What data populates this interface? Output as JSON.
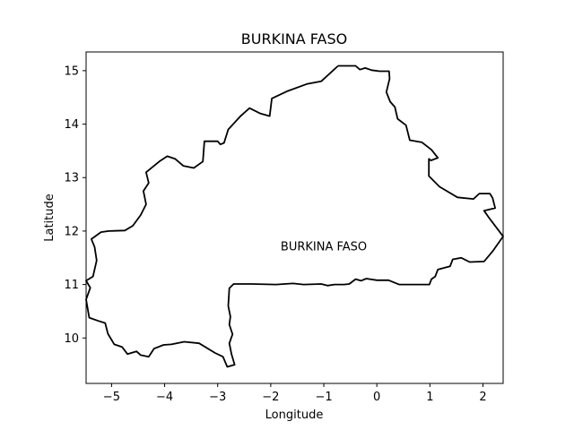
{
  "title": "BURKINA FASO",
  "annotation": "BURKINA FASO",
  "colors": {
    "outline": "#000000",
    "background": "#ffffff",
    "axes": "#000000"
  },
  "chart_data": {
    "type": "line",
    "title": "BURKINA FASO",
    "xlabel": "Longitude",
    "ylabel": "Latitude",
    "xlim": [
      -5.48,
      2.38
    ],
    "ylim": [
      9.15,
      15.35
    ],
    "grid": false,
    "x_ticks": [
      -5,
      -4,
      -3,
      -2,
      -1,
      0,
      1,
      2
    ],
    "x_tick_labels": [
      "−5",
      "−4",
      "−3",
      "−2",
      "−1",
      "0",
      "1",
      "2"
    ],
    "y_ticks": [
      10,
      11,
      12,
      13,
      14,
      15
    ],
    "y_tick_labels": [
      "10",
      "11",
      "12",
      "13",
      "14",
      "15"
    ],
    "annotation": {
      "text": "BURKINA FASO",
      "x": -1.0,
      "y": 11.72
    },
    "series": [
      {
        "points": [
          [
            -0.73,
            15.09
          ],
          [
            -0.4,
            15.09
          ],
          [
            -0.32,
            15.02
          ],
          [
            -0.22,
            15.05
          ],
          [
            -0.1,
            15.01
          ],
          [
            0.05,
            14.99
          ],
          [
            0.23,
            14.99
          ],
          [
            0.24,
            14.85
          ],
          [
            0.18,
            14.6
          ],
          [
            0.25,
            14.42
          ],
          [
            0.34,
            14.32
          ],
          [
            0.39,
            14.1
          ],
          [
            0.55,
            13.98
          ],
          [
            0.62,
            13.7
          ],
          [
            0.85,
            13.66
          ],
          [
            1.03,
            13.52
          ],
          [
            1.15,
            13.37
          ],
          [
            1.02,
            13.32
          ],
          [
            0.98,
            13.35
          ],
          [
            0.98,
            13.03
          ],
          [
            1.18,
            12.83
          ],
          [
            1.52,
            12.63
          ],
          [
            1.82,
            12.6
          ],
          [
            1.93,
            12.7
          ],
          [
            2.13,
            12.7
          ],
          [
            2.18,
            12.62
          ],
          [
            2.23,
            12.43
          ],
          [
            2.02,
            12.38
          ],
          [
            2.12,
            12.24
          ],
          [
            2.38,
            11.9
          ],
          [
            2.18,
            11.62
          ],
          [
            2.02,
            11.43
          ],
          [
            1.75,
            11.42
          ],
          [
            1.59,
            11.5
          ],
          [
            1.43,
            11.47
          ],
          [
            1.38,
            11.34
          ],
          [
            1.15,
            11.28
          ],
          [
            1.1,
            11.15
          ],
          [
            1.03,
            11.1
          ],
          [
            0.99,
            11.0
          ],
          [
            0.9,
            11.0
          ],
          [
            0.42,
            11.0
          ],
          [
            0.22,
            11.08
          ],
          [
            0.0,
            11.08
          ],
          [
            -0.2,
            11.11
          ],
          [
            -0.3,
            11.07
          ],
          [
            -0.4,
            11.1
          ],
          [
            -0.52,
            11.01
          ],
          [
            -0.62,
            11.0
          ],
          [
            -0.8,
            11.0
          ],
          [
            -0.93,
            10.98
          ],
          [
            -1.05,
            11.01
          ],
          [
            -1.38,
            11.0
          ],
          [
            -1.58,
            11.02
          ],
          [
            -1.9,
            11.0
          ],
          [
            -2.35,
            11.01
          ],
          [
            -2.7,
            11.01
          ],
          [
            -2.78,
            10.93
          ],
          [
            -2.8,
            10.6
          ],
          [
            -2.76,
            10.4
          ],
          [
            -2.78,
            10.25
          ],
          [
            -2.72,
            10.07
          ],
          [
            -2.78,
            9.9
          ],
          [
            -2.74,
            9.7
          ],
          [
            -2.68,
            9.5
          ],
          [
            -2.82,
            9.46
          ],
          [
            -2.9,
            9.65
          ],
          [
            -3.05,
            9.72
          ],
          [
            -3.35,
            9.9
          ],
          [
            -3.63,
            9.93
          ],
          [
            -3.87,
            9.88
          ],
          [
            -4.02,
            9.87
          ],
          [
            -4.2,
            9.8
          ],
          [
            -4.3,
            9.65
          ],
          [
            -4.45,
            9.68
          ],
          [
            -4.53,
            9.75
          ],
          [
            -4.7,
            9.7
          ],
          [
            -4.8,
            9.83
          ],
          [
            -4.95,
            9.88
          ],
          [
            -5.07,
            10.08
          ],
          [
            -5.12,
            10.28
          ],
          [
            -5.25,
            10.32
          ],
          [
            -5.42,
            10.38
          ],
          [
            -5.48,
            10.72
          ],
          [
            -5.4,
            10.94
          ],
          [
            -5.48,
            11.07
          ],
          [
            -5.35,
            11.15
          ],
          [
            -5.28,
            11.45
          ],
          [
            -5.32,
            11.7
          ],
          [
            -5.38,
            11.85
          ],
          [
            -5.2,
            11.98
          ],
          [
            -5.05,
            12.0
          ],
          [
            -4.75,
            12.01
          ],
          [
            -4.6,
            12.1
          ],
          [
            -4.45,
            12.3
          ],
          [
            -4.35,
            12.5
          ],
          [
            -4.4,
            12.75
          ],
          [
            -4.3,
            12.9
          ],
          [
            -4.35,
            13.1
          ],
          [
            -4.1,
            13.3
          ],
          [
            -3.95,
            13.4
          ],
          [
            -3.8,
            13.35
          ],
          [
            -3.65,
            13.22
          ],
          [
            -3.45,
            13.18
          ],
          [
            -3.28,
            13.3
          ],
          [
            -3.25,
            13.68
          ],
          [
            -3.0,
            13.68
          ],
          [
            -2.95,
            13.62
          ],
          [
            -2.88,
            13.65
          ],
          [
            -2.8,
            13.9
          ],
          [
            -2.57,
            14.15
          ],
          [
            -2.4,
            14.3
          ],
          [
            -2.2,
            14.2
          ],
          [
            -2.02,
            14.15
          ],
          [
            -1.98,
            14.48
          ],
          [
            -1.68,
            14.62
          ],
          [
            -1.32,
            14.75
          ],
          [
            -1.05,
            14.8
          ],
          [
            -0.73,
            15.09
          ]
        ]
      }
    ]
  }
}
